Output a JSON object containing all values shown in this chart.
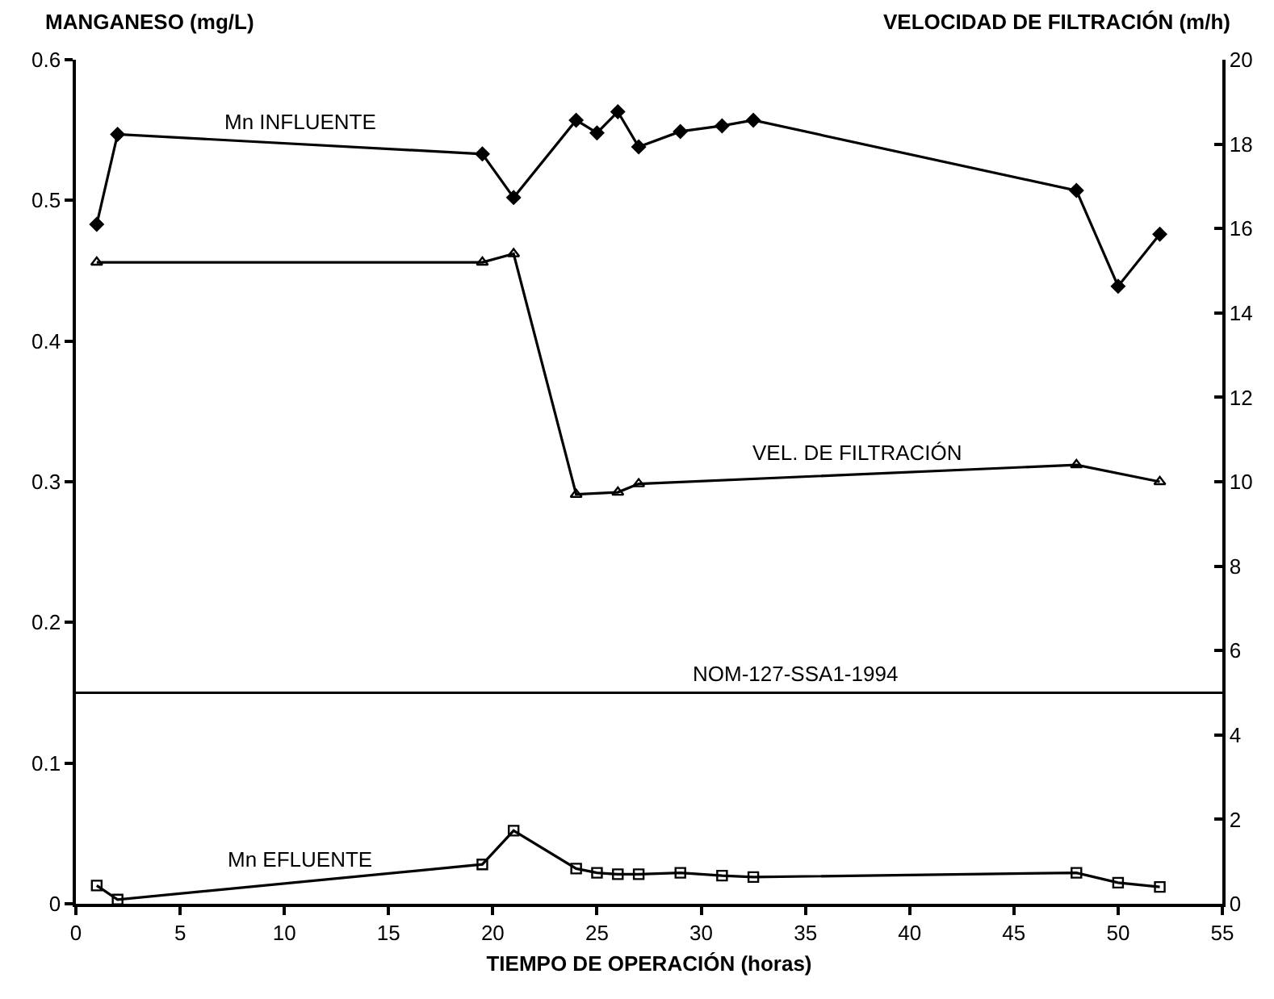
{
  "chart_data": {
    "type": "line",
    "xlabel": "TIEMPO DE OPERACIÓN (horas)",
    "ylabel": "MANGANESO (mg/L)",
    "y2label": "VELOCIDAD DE FILTRACIÓN (m/h)",
    "series": [
      {
        "name": "Mn INFLUENTE",
        "color": "#000000",
        "marker": "diamond",
        "x": [
          1,
          2,
          19.5,
          21,
          24,
          25,
          26,
          27,
          29,
          31,
          32.5,
          48,
          50,
          52
        ],
        "values": [
          0.483,
          0.547,
          0.533,
          0.502,
          0.557,
          0.548,
          0.563,
          0.538,
          0.549,
          0.553,
          0.557,
          0.507,
          0.439,
          0.476
        ]
      },
      {
        "name": "VEL. DE FILTRACIÓN",
        "color": "#000000",
        "marker": "triangle",
        "axis": "y2",
        "x": [
          1,
          19.5,
          21,
          24,
          26,
          27,
          48,
          52
        ],
        "values": [
          15.2,
          15.2,
          15.4,
          9.7,
          9.75,
          9.95,
          10.4,
          10.0
        ]
      },
      {
        "name": "Mn EFLUENTE",
        "color": "#000000",
        "marker": "square",
        "x": [
          1,
          2,
          19.5,
          21,
          24,
          25,
          26,
          27,
          29,
          31,
          32.5,
          48,
          50,
          52
        ],
        "values": [
          0.013,
          0.003,
          0.028,
          0.052,
          0.025,
          0.022,
          0.021,
          0.021,
          0.022,
          0.02,
          0.019,
          0.022,
          0.015,
          0.012
        ]
      }
    ],
    "ref_lines": [
      {
        "axis": "y",
        "value": 0.15,
        "label": "NOM-127-SSA1-1994",
        "color": "#000000",
        "line_style": "solid"
      }
    ],
    "xlim": [
      0,
      55
    ],
    "xticks": [
      0,
      5,
      10,
      15,
      20,
      25,
      30,
      35,
      40,
      45,
      50,
      55
    ],
    "ylim": [
      0,
      0.6
    ],
    "yticks": [
      0,
      0.1,
      0.2,
      0.3,
      0.4,
      0.5,
      0.6
    ],
    "y2lim": [
      0,
      20
    ],
    "y2ticks": [
      0,
      2,
      4,
      6,
      8,
      10,
      12,
      14,
      16,
      18,
      20
    ],
    "grid": false,
    "legend": false,
    "line_style": "solid"
  }
}
